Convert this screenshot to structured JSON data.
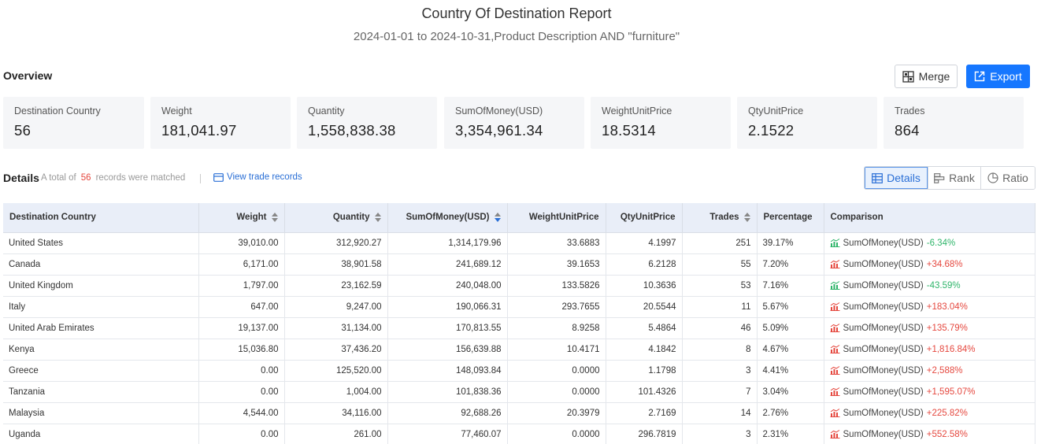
{
  "header": {
    "title": "Country Of Destination Report",
    "subtitle": "2024-01-01 to 2024-10-31,Product Description AND \"furniture\""
  },
  "overview": {
    "label": "Overview",
    "merge_label": "Merge",
    "export_label": "Export",
    "stats": [
      {
        "label": "Destination Country",
        "value": "56"
      },
      {
        "label": "Weight",
        "value": "181,041.97"
      },
      {
        "label": "Quantity",
        "value": "1,558,838.38"
      },
      {
        "label": "SumOfMoney(USD)",
        "value": "3,354,961.34"
      },
      {
        "label": "WeightUnitPrice",
        "value": "18.5314"
      },
      {
        "label": "QtyUnitPrice",
        "value": "2.1522"
      },
      {
        "label": "Trades",
        "value": "864"
      }
    ]
  },
  "details": {
    "label": "Details",
    "records_prefix": "A total of",
    "records_count": "56",
    "records_suffix": "records were matched",
    "view_records": "View trade records",
    "tabs": {
      "details": "Details",
      "rank": "Rank",
      "ratio": "Ratio"
    }
  },
  "colors": {
    "accent": "#1677ff",
    "positive": "#e5483f",
    "negative": "#2fb56a",
    "header_bg": "#e9eef8"
  },
  "table": {
    "headers": [
      "Destination Country",
      "Weight",
      "Quantity",
      "SumOfMoney(USD)",
      "WeightUnitPrice",
      "QtyUnitPrice",
      "Trades",
      "Percentage",
      "Comparison"
    ],
    "rows": [
      {
        "country": "United States",
        "weight": "39,010.00",
        "quantity": "312,920.27",
        "sum": "1,314,179.96",
        "wup": "33.6883",
        "qup": "4.1997",
        "trades": "251",
        "pct": "39.17%",
        "cmp_label": "SumOfMoney(USD)",
        "cmp_value": "-6.34%",
        "dir": "down"
      },
      {
        "country": "Canada",
        "weight": "6,171.00",
        "quantity": "38,901.58",
        "sum": "241,689.12",
        "wup": "39.1653",
        "qup": "6.2128",
        "trades": "55",
        "pct": "7.20%",
        "cmp_label": "SumOfMoney(USD)",
        "cmp_value": "+34.68%",
        "dir": "up"
      },
      {
        "country": "United Kingdom",
        "weight": "1,797.00",
        "quantity": "23,162.59",
        "sum": "240,048.00",
        "wup": "133.5826",
        "qup": "10.3636",
        "trades": "53",
        "pct": "7.16%",
        "cmp_label": "SumOfMoney(USD)",
        "cmp_value": "-43.59%",
        "dir": "down"
      },
      {
        "country": "Italy",
        "weight": "647.00",
        "quantity": "9,247.00",
        "sum": "190,066.31",
        "wup": "293.7655",
        "qup": "20.5544",
        "trades": "11",
        "pct": "5.67%",
        "cmp_label": "SumOfMoney(USD)",
        "cmp_value": "+183.04%",
        "dir": "up"
      },
      {
        "country": "United Arab Emirates",
        "weight": "19,137.00",
        "quantity": "31,134.00",
        "sum": "170,813.55",
        "wup": "8.9258",
        "qup": "5.4864",
        "trades": "46",
        "pct": "5.09%",
        "cmp_label": "SumOfMoney(USD)",
        "cmp_value": "+135.79%",
        "dir": "up"
      },
      {
        "country": "Kenya",
        "weight": "15,036.80",
        "quantity": "37,436.20",
        "sum": "156,639.88",
        "wup": "10.4171",
        "qup": "4.1842",
        "trades": "8",
        "pct": "4.67%",
        "cmp_label": "SumOfMoney(USD)",
        "cmp_value": "+1,816.84%",
        "dir": "up"
      },
      {
        "country": "Greece",
        "weight": "0.00",
        "quantity": "125,520.00",
        "sum": "148,093.84",
        "wup": "0.0000",
        "qup": "1.1798",
        "trades": "3",
        "pct": "4.41%",
        "cmp_label": "SumOfMoney(USD)",
        "cmp_value": "+2,588%",
        "dir": "up"
      },
      {
        "country": "Tanzania",
        "weight": "0.00",
        "quantity": "1,004.00",
        "sum": "101,838.36",
        "wup": "0.0000",
        "qup": "101.4326",
        "trades": "7",
        "pct": "3.04%",
        "cmp_label": "SumOfMoney(USD)",
        "cmp_value": "+1,595.07%",
        "dir": "up"
      },
      {
        "country": "Malaysia",
        "weight": "4,544.00",
        "quantity": "34,116.00",
        "sum": "92,688.26",
        "wup": "20.3979",
        "qup": "2.7169",
        "trades": "14",
        "pct": "2.76%",
        "cmp_label": "SumOfMoney(USD)",
        "cmp_value": "+225.82%",
        "dir": "up"
      },
      {
        "country": "Uganda",
        "weight": "0.00",
        "quantity": "261.00",
        "sum": "77,460.07",
        "wup": "0.0000",
        "qup": "296.7819",
        "trades": "3",
        "pct": "2.31%",
        "cmp_label": "SumOfMoney(USD)",
        "cmp_value": "+552.58%",
        "dir": "up"
      }
    ]
  }
}
